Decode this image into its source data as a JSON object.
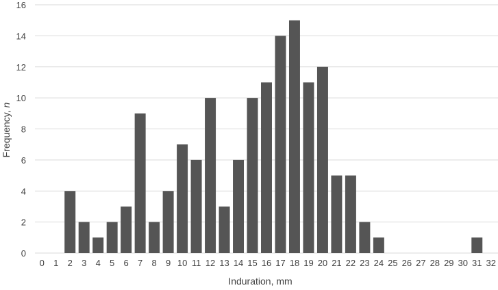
{
  "chart_data": {
    "type": "bar",
    "categories": [
      "0",
      "1",
      "2",
      "3",
      "4",
      "5",
      "6",
      "7",
      "8",
      "9",
      "10",
      "11",
      "12",
      "13",
      "14",
      "15",
      "16",
      "17",
      "18",
      "19",
      "20",
      "21",
      "22",
      "23",
      "24",
      "25",
      "26",
      "27",
      "28",
      "29",
      "30",
      "31",
      "32"
    ],
    "values": [
      0,
      0,
      4,
      2,
      1,
      2,
      3,
      9,
      2,
      4,
      7,
      6,
      10,
      3,
      6,
      10,
      11,
      14,
      15,
      11,
      12,
      5,
      5,
      2,
      1,
      0,
      0,
      0,
      0,
      0,
      0,
      1,
      0
    ],
    "title": "",
    "xlabel": "Induration, mm",
    "ylabel_main": "Frequency, ",
    "ylabel_italic": "n",
    "ylim": [
      0,
      16
    ],
    "yticks": [
      "0",
      "2",
      "4",
      "6",
      "8",
      "10",
      "12",
      "14",
      "16"
    ],
    "grid": true,
    "bar_color": "#555555",
    "grid_color": "#d9d9d9",
    "text_color": "#404040"
  }
}
